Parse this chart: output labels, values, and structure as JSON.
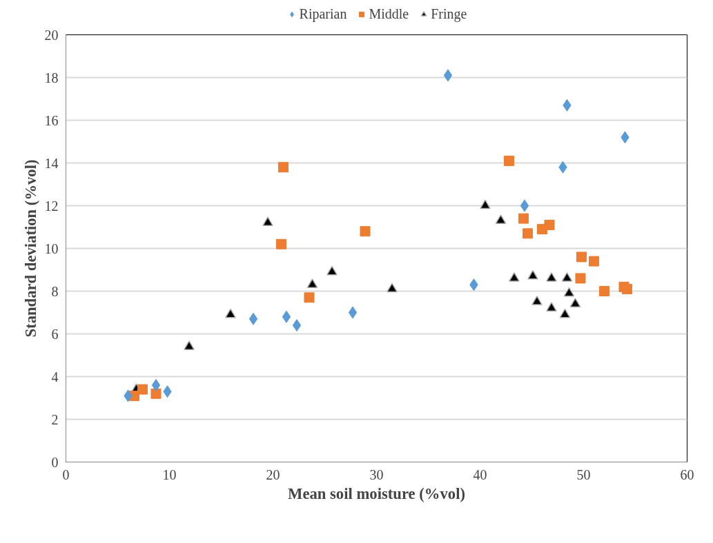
{
  "chart_data": {
    "type": "scatter",
    "xlabel": "Mean soil moisture (%vol)",
    "ylabel": "Standard deviation (%vol)",
    "xlim": [
      0,
      60
    ],
    "xticks": [
      0,
      10,
      20,
      30,
      40,
      50,
      60
    ],
    "ylim": [
      0,
      20
    ],
    "yticks": [
      0,
      2,
      4,
      6,
      8,
      10,
      12,
      14,
      16,
      18,
      20
    ],
    "grid": "y",
    "legend": "top",
    "series": [
      {
        "name": "Riparian",
        "color": "#5b9bd5",
        "marker": "diamond",
        "x": [
          6.0,
          8.7,
          9.8,
          18.1,
          21.3,
          22.3,
          27.7,
          36.9,
          39.4,
          44.3,
          48.0,
          48.4,
          54.0
        ],
        "values": [
          3.1,
          3.6,
          3.3,
          6.7,
          6.8,
          6.4,
          7.0,
          18.1,
          8.3,
          12.0,
          13.8,
          16.7,
          15.2
        ]
      },
      {
        "name": "Middle",
        "color": "#ed7d31",
        "marker": "square",
        "x": [
          6.6,
          7.4,
          8.7,
          21.0,
          20.8,
          23.5,
          28.9,
          42.8,
          44.2,
          44.6,
          46.0,
          46.7,
          49.7,
          49.8,
          51.0,
          52.0,
          53.9,
          54.2
        ],
        "values": [
          3.1,
          3.4,
          3.2,
          13.8,
          10.2,
          7.7,
          10.8,
          14.1,
          11.4,
          10.7,
          10.9,
          11.1,
          8.6,
          9.6,
          9.4,
          8.0,
          8.2,
          8.1
        ]
      },
      {
        "name": "Fringe",
        "color": "#000000",
        "marker": "triangle",
        "x": [
          6.8,
          11.9,
          15.9,
          19.5,
          23.8,
          25.7,
          31.5,
          40.5,
          42.0,
          43.3,
          45.1,
          46.9,
          48.4,
          48.6,
          49.2,
          45.5,
          46.9,
          48.2
        ],
        "values": [
          3.4,
          5.4,
          6.9,
          11.2,
          8.3,
          8.9,
          8.1,
          12.0,
          11.3,
          8.6,
          8.7,
          8.6,
          8.6,
          7.9,
          7.4,
          7.5,
          7.2,
          6.9
        ]
      }
    ]
  }
}
